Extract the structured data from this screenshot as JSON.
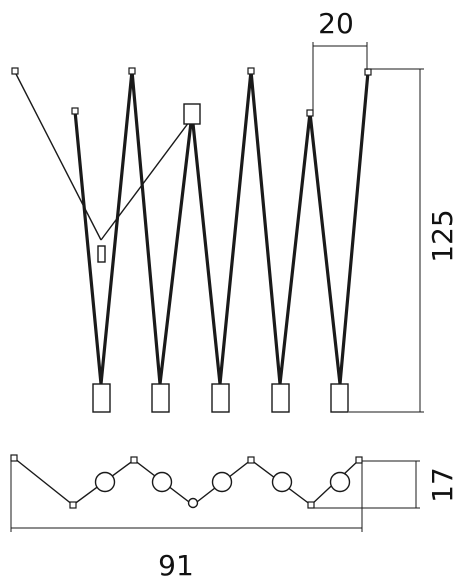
{
  "drawing": {
    "dim_top_width": "20",
    "dim_height": "125",
    "dim_plan_depth": "17",
    "dim_overall_width": "91"
  }
}
